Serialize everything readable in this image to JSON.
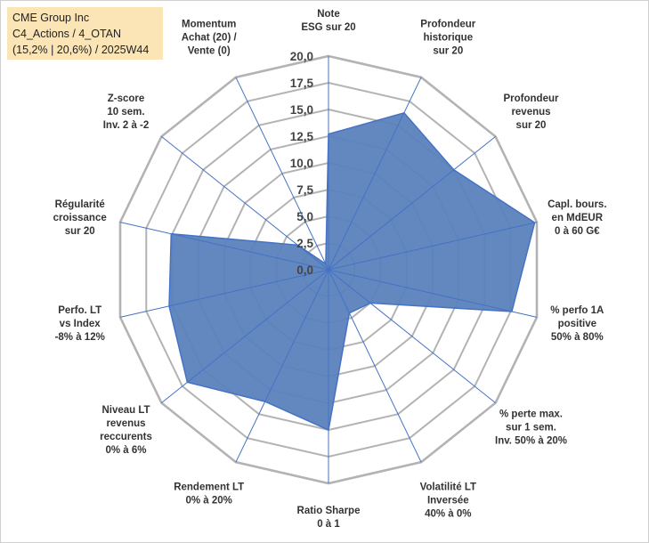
{
  "title": {
    "line1": "CME Group Inc",
    "line2": "C4_Actions / 4_OTAN",
    "line3": "(15,2% | 20,6%) / 2025W44"
  },
  "chart_data": {
    "type": "radar",
    "title": "CME Group Inc",
    "rlim": [
      0,
      20
    ],
    "ticks": [
      "0,0",
      "2,5",
      "5,0",
      "7,5",
      "10,0",
      "12,5",
      "15,0",
      "17,5",
      "20,0"
    ],
    "tick_values": [
      0,
      2.5,
      5,
      7.5,
      10,
      12.5,
      15,
      17.5,
      20
    ],
    "grid": true,
    "fill_color": "#5b82bd",
    "line_color": "#4472c4",
    "grid_color": "#b3b3b3",
    "axes": [
      {
        "label": [
          "Note",
          "ESG sur 20"
        ],
        "value": 12.7
      },
      {
        "label": [
          "Profondeur",
          "historique",
          "sur 20"
        ],
        "value": 16.3
      },
      {
        "label": [
          "Profondeur",
          "revenus",
          "sur 20"
        ],
        "value": 15.0
      },
      {
        "label": [
          "Capl. bours.",
          "en MdEUR",
          "0 à 60 G€"
        ],
        "value": 19.8
      },
      {
        "label": [
          "% perfo 1A",
          "positive",
          "50% à 80%"
        ],
        "value": 17.6
      },
      {
        "label": [
          "% perte max.",
          "sur 1 sem.",
          "Inv. 50% à 20%"
        ],
        "value": 5.0
      },
      {
        "label": [
          "Volatilité LT",
          "Inversée",
          "40% à 0%"
        ],
        "value": 4.5
      },
      {
        "label": [
          "Ratio Sharpe",
          "0 à 1"
        ],
        "value": 15.0
      },
      {
        "label": [
          "Rendement LT",
          "0% à 20%"
        ],
        "value": 13.7
      },
      {
        "label": [
          "Niveau LT",
          "revenus",
          "reccurents",
          "0% à 6%"
        ],
        "value": 16.9
      },
      {
        "label": [
          "Perfo. LT",
          "vs Index",
          "-8% à 12%"
        ],
        "value": 15.3
      },
      {
        "label": [
          "Régularité",
          "croissance",
          "sur 20"
        ],
        "value": 15.1
      },
      {
        "label": [
          "Z-score",
          "10 sem.",
          "Inv. 2 à -2"
        ],
        "value": 3.7
      },
      {
        "label": [
          "Momentum",
          "Achat (20) /",
          "Vente (0)"
        ],
        "value": 0.6
      }
    ]
  }
}
